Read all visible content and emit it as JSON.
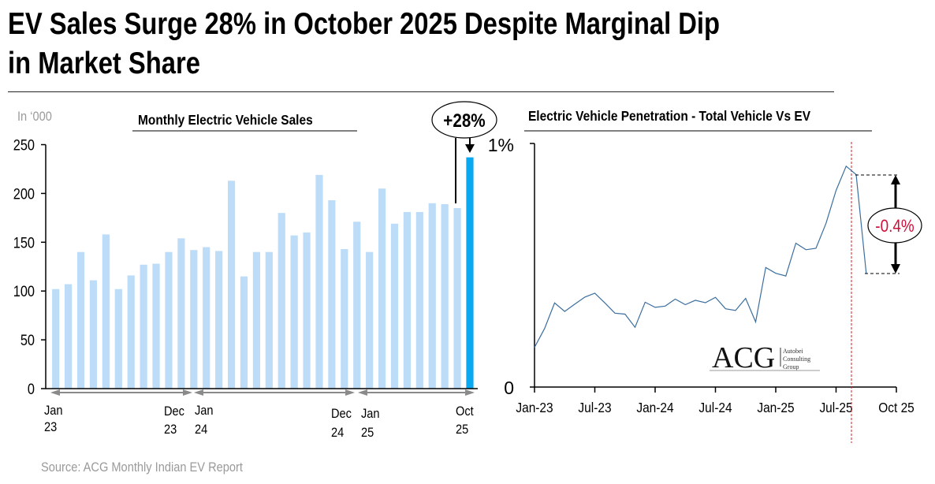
{
  "headline": {
    "line1": "EV Sales Surge 28% in October 2025 Despite Marginal Dip",
    "line2": "in Market Share"
  },
  "source": "Source: ACG Monthly Indian EV Report",
  "logo": {
    "mark": "ACG",
    "lines": [
      "Autobei",
      "Consulting",
      "Group"
    ]
  },
  "colors": {
    "bar": "#BDDCF8",
    "bar_highlight": "#0AA8F0",
    "line": "#3B6E9E",
    "annotation_text": "#D0103A",
    "marker_line": "#D02020"
  },
  "chart_data": [
    {
      "type": "bar",
      "title": "Monthly Electric Vehicle Sales",
      "unit_label": "In ‘000",
      "ylim": [
        0,
        250
      ],
      "yticks": [
        "0",
        "50",
        "100",
        "150",
        "200",
        "250"
      ],
      "categories": [
        "Jan-23",
        "Feb-23",
        "Mar-23",
        "Apr-23",
        "May-23",
        "Jun-23",
        "Jul-23",
        "Aug-23",
        "Sep-23",
        "Oct-23",
        "Nov-23",
        "Dec-23",
        "Jan-24",
        "Feb-24",
        "Mar-24",
        "Apr-24",
        "May-24",
        "Jun-24",
        "Jul-24",
        "Aug-24",
        "Sep-24",
        "Oct-24",
        "Nov-24",
        "Dec-24",
        "Jan-25",
        "Feb-25",
        "Mar-25",
        "Apr-25",
        "May-25",
        "Jun-25",
        "Jul-25",
        "Aug-25",
        "Sep-25",
        "Oct-25"
      ],
      "values": [
        102,
        107,
        140,
        111,
        158,
        102,
        116,
        127,
        128,
        140,
        154,
        142,
        145,
        141,
        213,
        115,
        140,
        140,
        180,
        157,
        160,
        219,
        193,
        143,
        171,
        140,
        205,
        169,
        181,
        181,
        190,
        189,
        185,
        237
      ],
      "highlight_index": 33,
      "x_labels": [
        {
          "top": "Jan",
          "bottom": "23"
        },
        {
          "top": "Dec",
          "bottom": "23"
        },
        {
          "top": "Jan",
          "bottom": "24"
        },
        {
          "top": "Dec",
          "bottom": "24"
        },
        {
          "top": "Jan",
          "bottom": "25"
        },
        {
          "top": "Oct",
          "bottom": "25"
        }
      ],
      "annotation": "+28%",
      "grid": false
    },
    {
      "type": "line",
      "title": "Electric Vehicle Penetration - Total Vehicle Vs EV",
      "ylim": [
        0,
        1
      ],
      "yticks": [
        "0",
        "1%"
      ],
      "xticks": [
        "Jan-23",
        "Jul-23",
        "Jan-24",
        "Jul-24",
        "Jan-25",
        "Jul-25",
        "Oct 25"
      ],
      "x": [
        "Jan-23",
        "Feb-23",
        "Mar-23",
        "Apr-23",
        "May-23",
        "Jun-23",
        "Jul-23",
        "Aug-23",
        "Sep-23",
        "Oct-23",
        "Nov-23",
        "Dec-23",
        "Jan-24",
        "Feb-24",
        "Mar-24",
        "Apr-24",
        "May-24",
        "Jun-24",
        "Jul-24",
        "Aug-24",
        "Sep-24",
        "Oct-24",
        "Nov-24",
        "Dec-24",
        "Jan-25",
        "Feb-25",
        "Mar-25",
        "Apr-25",
        "May-25",
        "Jun-25",
        "Jul-25",
        "Aug-25",
        "Sep-25",
        "Oct-25"
      ],
      "values": [
        0.163,
        0.241,
        0.346,
        0.311,
        0.341,
        0.37,
        0.386,
        0.346,
        0.304,
        0.3,
        0.246,
        0.349,
        0.328,
        0.333,
        0.362,
        0.339,
        0.357,
        0.347,
        0.369,
        0.322,
        0.315,
        0.365,
        0.268,
        0.492,
        0.468,
        0.457,
        0.592,
        0.565,
        0.571,
        0.674,
        0.809,
        0.909,
        0.874,
        0.467
      ],
      "annotation": "-0.4%",
      "grid": false
    }
  ]
}
